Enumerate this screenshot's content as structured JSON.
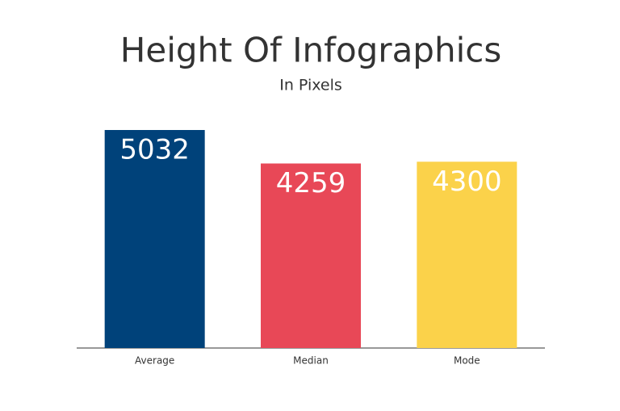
{
  "chart_data": {
    "type": "bar",
    "title": "Height Of Infographics",
    "subtitle": "In Pixels",
    "categories": [
      "Average",
      "Median",
      "Mode"
    ],
    "values": [
      5032,
      4259,
      4300
    ],
    "colors": [
      "#00427a",
      "#e84857",
      "#fbd24a"
    ]
  }
}
